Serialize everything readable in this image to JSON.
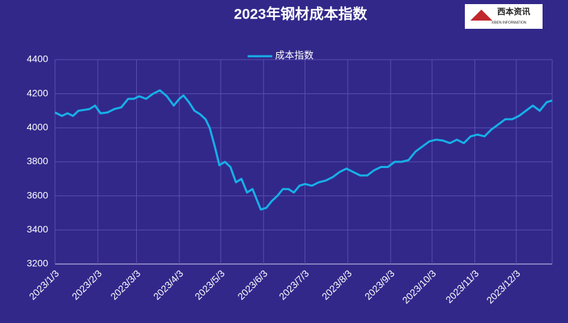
{
  "chart_data": {
    "type": "line",
    "title": "2023年钢材成本指数",
    "logo": {
      "name": "西本资讯",
      "subtitle": "XIBEN INFORMATION"
    },
    "x": [
      "2023-01-03",
      "2023-01-08",
      "2023-01-12",
      "2023-01-16",
      "2023-01-20",
      "2023-01-28",
      "2023-02-01",
      "2023-02-05",
      "2023-02-10",
      "2023-02-15",
      "2023-02-20",
      "2023-02-25",
      "2023-03-01",
      "2023-03-05",
      "2023-03-10",
      "2023-03-15",
      "2023-03-20",
      "2023-03-25",
      "2023-03-30",
      "2023-04-03",
      "2023-04-06",
      "2023-04-10",
      "2023-04-14",
      "2023-04-18",
      "2023-04-22",
      "2023-04-25",
      "2023-04-29",
      "2023-05-02",
      "2023-05-06",
      "2023-05-10",
      "2023-05-14",
      "2023-05-18",
      "2023-05-22",
      "2023-05-26",
      "2023-05-29",
      "2023-06-01",
      "2023-06-05",
      "2023-06-09",
      "2023-06-13",
      "2023-06-17",
      "2023-06-21",
      "2023-06-25",
      "2023-06-29",
      "2023-07-03",
      "2023-07-08",
      "2023-07-13",
      "2023-07-18",
      "2023-07-23",
      "2023-07-28",
      "2023-08-02",
      "2023-08-07",
      "2023-08-12",
      "2023-08-17",
      "2023-08-22",
      "2023-08-27",
      "2023-09-01",
      "2023-09-06",
      "2023-09-11",
      "2023-09-16",
      "2023-09-21",
      "2023-09-26",
      "2023-10-01",
      "2023-10-06",
      "2023-10-11",
      "2023-10-16",
      "2023-10-21",
      "2023-10-26",
      "2023-10-31",
      "2023-11-05",
      "2023-11-10",
      "2023-11-15",
      "2023-11-20",
      "2023-11-25",
      "2023-11-30",
      "2023-12-05",
      "2023-12-10",
      "2023-12-15",
      "2023-12-20",
      "2023-12-25",
      "2023-12-29"
    ],
    "series": [
      {
        "name": "成本指数",
        "color": "#17b0e8",
        "values": [
          4090,
          4070,
          4085,
          4070,
          4100,
          4110,
          4130,
          4085,
          4090,
          4110,
          4120,
          4170,
          4170,
          4185,
          4170,
          4200,
          4220,
          4185,
          4130,
          4170,
          4190,
          4150,
          4100,
          4080,
          4050,
          4000,
          3880,
          3780,
          3800,
          3770,
          3680,
          3700,
          3620,
          3640,
          3580,
          3520,
          3530,
          3570,
          3600,
          3640,
          3640,
          3620,
          3660,
          3670,
          3660,
          3680,
          3690,
          3710,
          3740,
          3760,
          3740,
          3720,
          3720,
          3750,
          3770,
          3770,
          3800,
          3800,
          3810,
          3860,
          3890,
          3920,
          3930,
          3925,
          3910,
          3930,
          3910,
          3950,
          3960,
          3950,
          3990,
          4020,
          4050,
          4050,
          4070,
          4100,
          4130,
          4100,
          4150,
          4160
        ]
      }
    ],
    "xlim": [
      "2023-01-03",
      "2023-12-29"
    ],
    "xticks": [
      {
        "value": "2023-01-03",
        "label": "2023/1/3"
      },
      {
        "value": "2023-02-03",
        "label": "2023/2/3"
      },
      {
        "value": "2023-03-03",
        "label": "2023/3/3"
      },
      {
        "value": "2023-04-03",
        "label": "2023/4/3"
      },
      {
        "value": "2023-05-03",
        "label": "2023/5/3"
      },
      {
        "value": "2023-06-03",
        "label": "2023/6/3"
      },
      {
        "value": "2023-07-03",
        "label": "2023/7/3"
      },
      {
        "value": "2023-08-03",
        "label": "2023/8/3"
      },
      {
        "value": "2023-09-03",
        "label": "2023/9/3"
      },
      {
        "value": "2023-10-03",
        "label": "2023/10/3"
      },
      {
        "value": "2023-11-03",
        "label": "2023/11/3"
      },
      {
        "value": "2023-12-03",
        "label": "2023/12/3"
      }
    ],
    "ylim": [
      3200,
      4400
    ],
    "yticks": [
      3200,
      3400,
      3600,
      3800,
      4000,
      4200,
      4400
    ],
    "grid": true
  }
}
